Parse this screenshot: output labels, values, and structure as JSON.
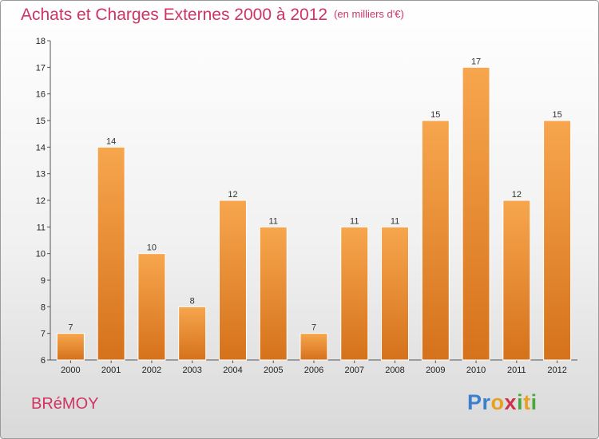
{
  "chart_data": {
    "type": "bar",
    "title": "Achats et Charges Externes 2000 à 2012",
    "subtitle": "(en milliers d'€)",
    "xlabel": "",
    "ylabel": "",
    "categories": [
      "2000",
      "2001",
      "2002",
      "2003",
      "2004",
      "2005",
      "2006",
      "2007",
      "2008",
      "2009",
      "2010",
      "2011",
      "2012"
    ],
    "values": [
      7,
      14,
      10,
      8,
      12,
      11,
      7,
      11,
      11,
      15,
      17,
      12,
      15
    ],
    "ylim": [
      6,
      18
    ],
    "yticks": [
      6,
      7,
      8,
      9,
      10,
      11,
      12,
      13,
      14,
      15,
      16,
      17,
      18
    ],
    "grid": false,
    "bar_color": "#e88a2e"
  },
  "footer": {
    "town": "BRéMOY",
    "logo_letters": [
      {
        "ch": "P",
        "color": "#3a7fd0"
      },
      {
        "ch": "r",
        "color": "#3a7fd0"
      },
      {
        "ch": "o",
        "color": "#e8a020"
      },
      {
        "ch": "x",
        "color": "#d0304a"
      },
      {
        "ch": "i",
        "color": "#4aa83a"
      },
      {
        "ch": "t",
        "color": "#e8a020"
      },
      {
        "ch": "i",
        "color": "#4aa83a"
      }
    ]
  }
}
